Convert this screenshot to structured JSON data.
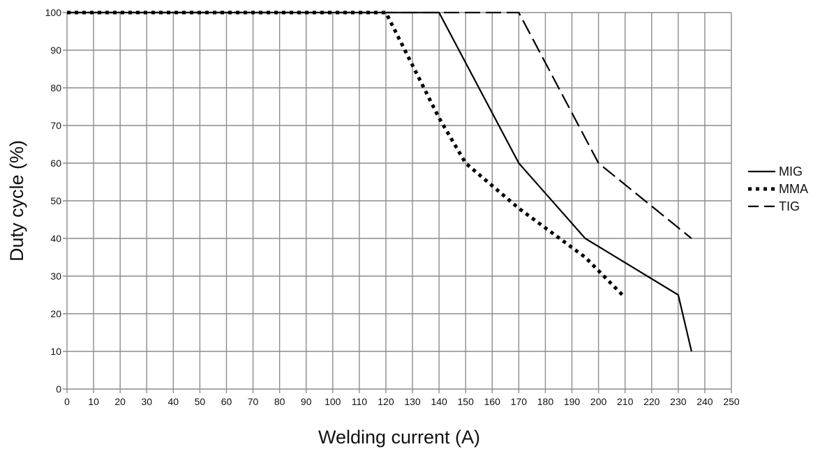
{
  "chart_data": {
    "type": "line",
    "title": "",
    "xlabel": "Welding current (A)",
    "ylabel": "Duty cycle (%)",
    "xlim": [
      0,
      250
    ],
    "ylim": [
      0,
      100
    ],
    "x_ticks": [
      0,
      10,
      20,
      30,
      40,
      50,
      60,
      70,
      80,
      90,
      100,
      110,
      120,
      130,
      140,
      150,
      160,
      170,
      180,
      190,
      200,
      210,
      220,
      230,
      240,
      250
    ],
    "y_ticks": [
      0,
      10,
      20,
      30,
      40,
      50,
      60,
      70,
      80,
      90,
      100
    ],
    "grid": true,
    "legend_position": "right",
    "series": [
      {
        "name": "MIG",
        "style": "solid",
        "points": [
          [
            0,
            100
          ],
          [
            140,
            100
          ],
          [
            170,
            60
          ],
          [
            195,
            40
          ],
          [
            230,
            25
          ],
          [
            235,
            10
          ]
        ]
      },
      {
        "name": "MMA",
        "style": "dotted",
        "points": [
          [
            0,
            100
          ],
          [
            120,
            100
          ],
          [
            140,
            72
          ],
          [
            150,
            60
          ],
          [
            170,
            48
          ],
          [
            195,
            35
          ],
          [
            209,
            25
          ]
        ]
      },
      {
        "name": "TIG",
        "style": "dashed",
        "points": [
          [
            0,
            100
          ],
          [
            170,
            100
          ],
          [
            200,
            60
          ],
          [
            235,
            40
          ]
        ]
      }
    ]
  }
}
